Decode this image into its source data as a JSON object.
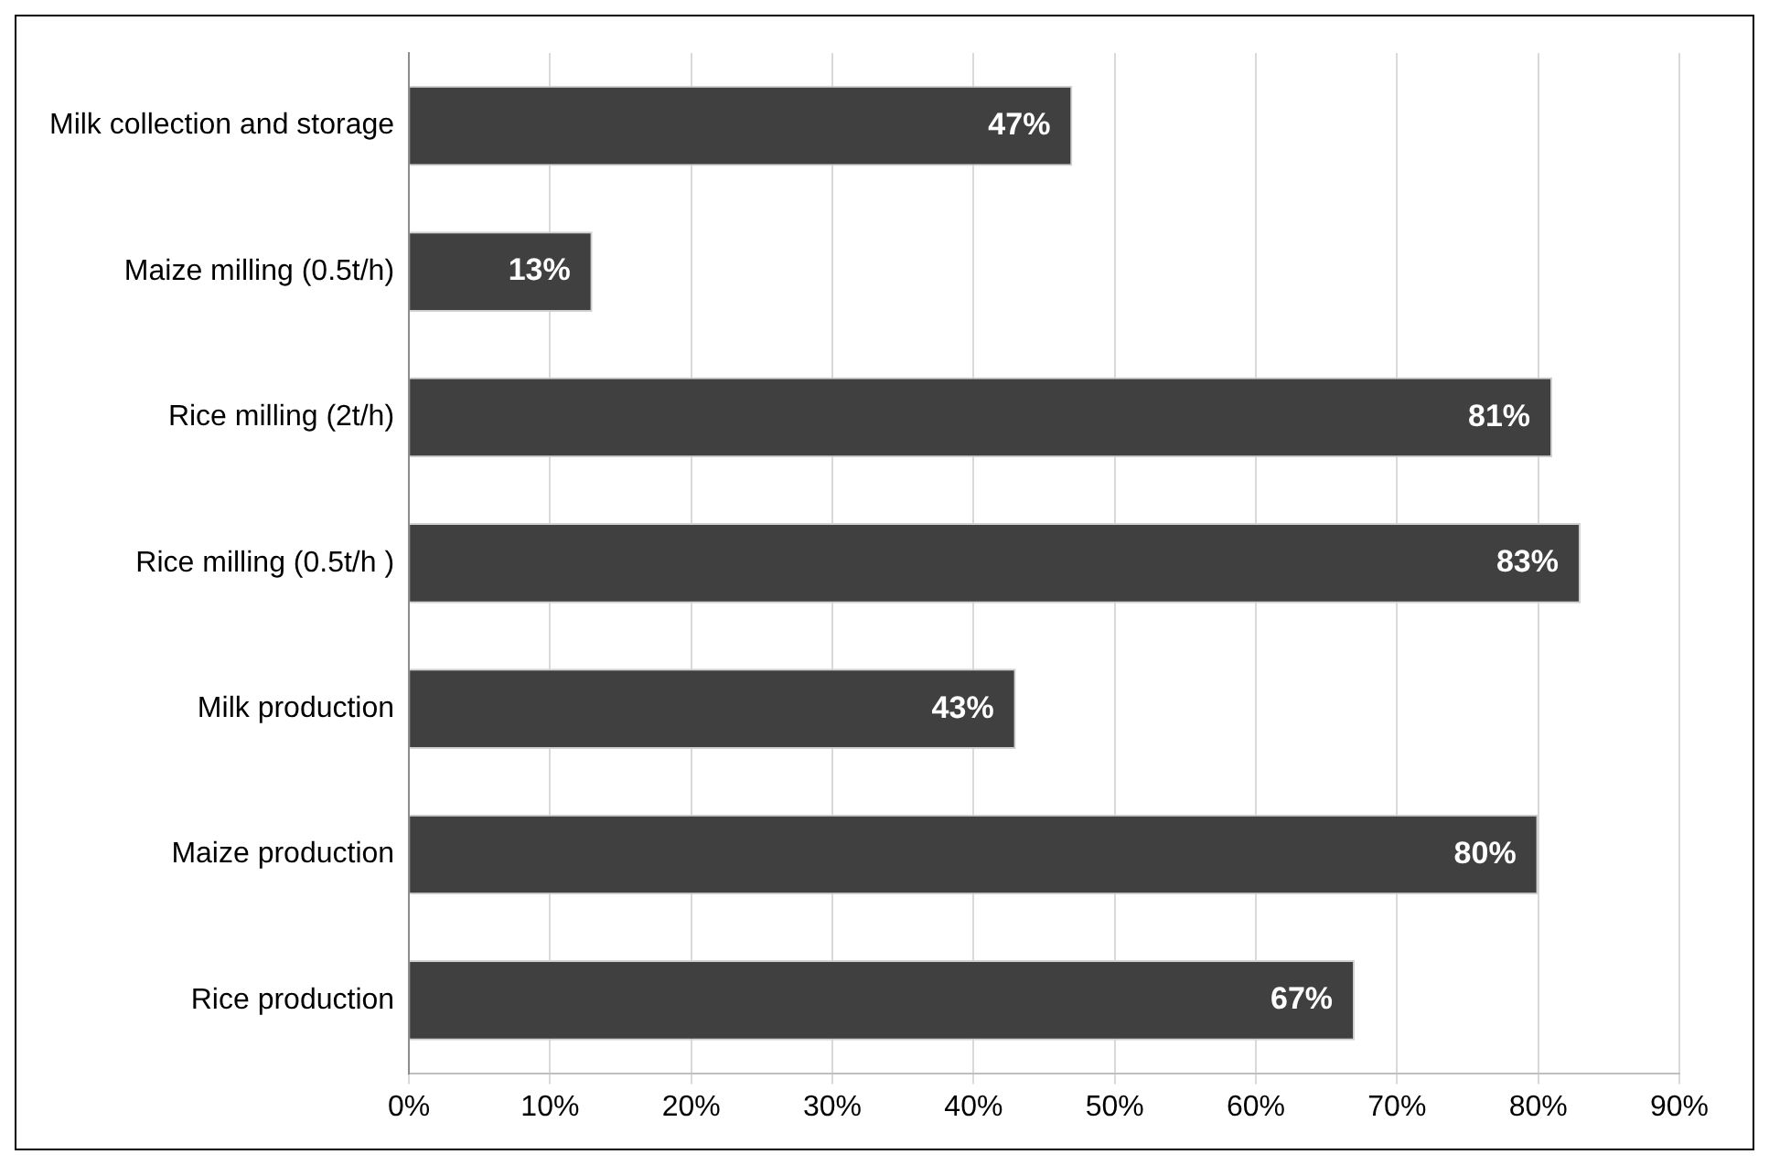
{
  "chart_data": {
    "type": "bar",
    "orientation": "horizontal",
    "categories": [
      "Milk collection and storage",
      "Maize milling (0.5t/h)",
      "Rice milling (2t/h)",
      "Rice milling (0.5t/h )",
      "Milk production",
      "Maize production",
      "Rice production"
    ],
    "values": [
      47,
      13,
      81,
      83,
      43,
      80,
      67
    ],
    "value_labels": [
      "47%",
      "13%",
      "81%",
      "83%",
      "43%",
      "80%",
      "67%"
    ],
    "color": "#404040",
    "xlim": [
      0,
      90
    ],
    "xticks": [
      {
        "value": 0,
        "label": "0%"
      },
      {
        "value": 10,
        "label": "10%"
      },
      {
        "value": 20,
        "label": "20%"
      },
      {
        "value": 30,
        "label": "30%"
      },
      {
        "value": 40,
        "label": "40%"
      },
      {
        "value": 50,
        "label": "50%"
      },
      {
        "value": 60,
        "label": "60%"
      },
      {
        "value": 70,
        "label": "70%"
      },
      {
        "value": 80,
        "label": "80%"
      },
      {
        "value": 90,
        "label": "90%"
      }
    ],
    "grid": "x",
    "legend": false
  }
}
